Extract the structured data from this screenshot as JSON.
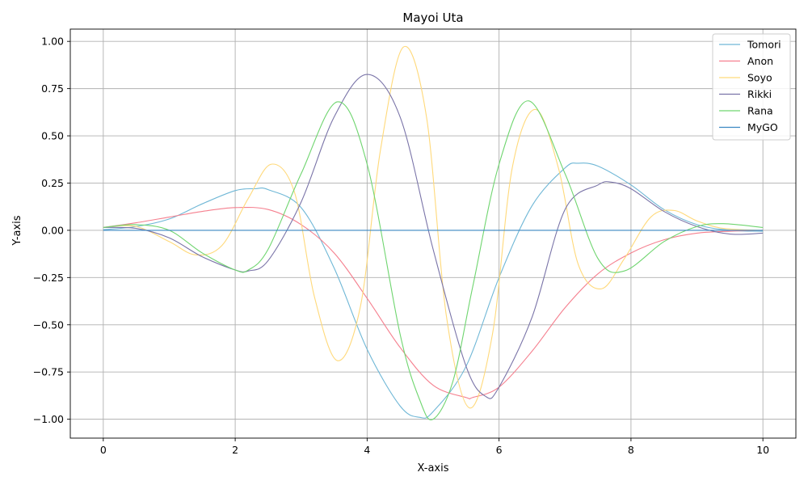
{
  "chart_data": {
    "type": "line",
    "title": "Mayoi Uta",
    "xlabel": "X-axis",
    "ylabel": "Y-axis",
    "xlim": [
      -0.5,
      10.5
    ],
    "ylim": [
      -1.1,
      1.065
    ],
    "xticks": [
      0,
      2,
      4,
      6,
      8,
      10
    ],
    "xtick_labels": [
      "0",
      "2",
      "4",
      "6",
      "8",
      "10"
    ],
    "yticks": [
      -1.0,
      -0.75,
      -0.5,
      -0.25,
      0.0,
      0.25,
      0.5,
      0.75,
      1.0
    ],
    "ytick_labels": [
      "−1.00",
      "−0.75",
      "−0.50",
      "−0.25",
      "0.00",
      "0.25",
      "0.50",
      "0.75",
      "1.00"
    ],
    "grid": true,
    "legend_position": "top-right",
    "series": [
      {
        "name": "Tomori",
        "color": "#6fb7d6",
        "x": [
          0,
          0.5,
          1,
          1.5,
          2,
          2.3,
          2.5,
          3,
          3.5,
          4,
          4.5,
          4.8,
          5,
          5.5,
          6,
          6.5,
          7,
          7.2,
          7.5,
          8,
          8.5,
          9,
          9.5,
          10
        ],
        "y": [
          0.003,
          0.02,
          0.06,
          0.14,
          0.21,
          0.22,
          0.215,
          0.12,
          -0.2,
          -0.63,
          -0.93,
          -0.99,
          -0.96,
          -0.72,
          -0.25,
          0.13,
          0.33,
          0.355,
          0.34,
          0.24,
          0.11,
          0.03,
          0.0,
          -0.005
        ]
      },
      {
        "name": "Anon",
        "color": "#f57f8e",
        "x": [
          0,
          0.5,
          1,
          1.5,
          2,
          2.5,
          3,
          3.5,
          4,
          4.5,
          5,
          5.5,
          5.6,
          6,
          6.5,
          7,
          7.5,
          8,
          8.5,
          9,
          9.5,
          10
        ],
        "y": [
          0.015,
          0.04,
          0.07,
          0.1,
          0.12,
          0.11,
          0.03,
          -0.12,
          -0.36,
          -0.62,
          -0.82,
          -0.885,
          -0.885,
          -0.83,
          -0.64,
          -0.41,
          -0.23,
          -0.12,
          -0.05,
          -0.015,
          -0.005,
          0.0
        ]
      },
      {
        "name": "Soyo",
        "color": "#ffd97a",
        "x": [
          0,
          0.5,
          1,
          1.4,
          1.8,
          2.2,
          2.55,
          2.9,
          3.2,
          3.55,
          3.9,
          4.2,
          4.55,
          4.9,
          5.2,
          5.55,
          5.9,
          6.2,
          6.55,
          6.9,
          7.2,
          7.55,
          7.9,
          8.3,
          8.65,
          9.0,
          9.4,
          10
        ],
        "y": [
          0.015,
          0.02,
          -0.06,
          -0.13,
          -0.08,
          0.17,
          0.35,
          0.2,
          -0.35,
          -0.69,
          -0.4,
          0.42,
          0.97,
          0.6,
          -0.45,
          -0.94,
          -0.55,
          0.33,
          0.64,
          0.33,
          -0.18,
          -0.31,
          -0.15,
          0.07,
          0.105,
          0.05,
          0.01,
          0.0
        ]
      },
      {
        "name": "Rikki",
        "color": "#7a74a8",
        "x": [
          0,
          0.5,
          1,
          1.5,
          2,
          2.2,
          2.5,
          3,
          3.5,
          4,
          4.5,
          5,
          5.5,
          5.8,
          6,
          6.5,
          7,
          7.5,
          7.7,
          8,
          8.5,
          9,
          9.5,
          10
        ],
        "y": [
          0.015,
          0.01,
          -0.04,
          -0.14,
          -0.21,
          -0.215,
          -0.16,
          0.15,
          0.6,
          0.825,
          0.6,
          -0.1,
          -0.72,
          -0.88,
          -0.83,
          -0.46,
          0.11,
          0.24,
          0.255,
          0.22,
          0.1,
          0.02,
          -0.02,
          -0.015
        ]
      },
      {
        "name": "Rana",
        "color": "#6fd56f",
        "x": [
          0,
          0.5,
          1,
          1.5,
          2,
          2.2,
          2.5,
          3,
          3.55,
          4,
          4.5,
          4.8,
          5,
          5.3,
          5.6,
          6,
          6.45,
          7,
          7.5,
          7.9,
          8.5,
          9,
          9.4,
          10
        ],
        "y": [
          0.015,
          0.03,
          0.0,
          -0.12,
          -0.21,
          -0.21,
          -0.1,
          0.3,
          0.68,
          0.35,
          -0.55,
          -0.9,
          -1.0,
          -0.8,
          -0.3,
          0.35,
          0.685,
          0.3,
          -0.15,
          -0.215,
          -0.06,
          0.02,
          0.035,
          0.015
        ]
      },
      {
        "name": "MyGO",
        "color": "#3a87c2",
        "x": [
          0,
          10
        ],
        "y": [
          0.0,
          0.0
        ]
      }
    ]
  }
}
